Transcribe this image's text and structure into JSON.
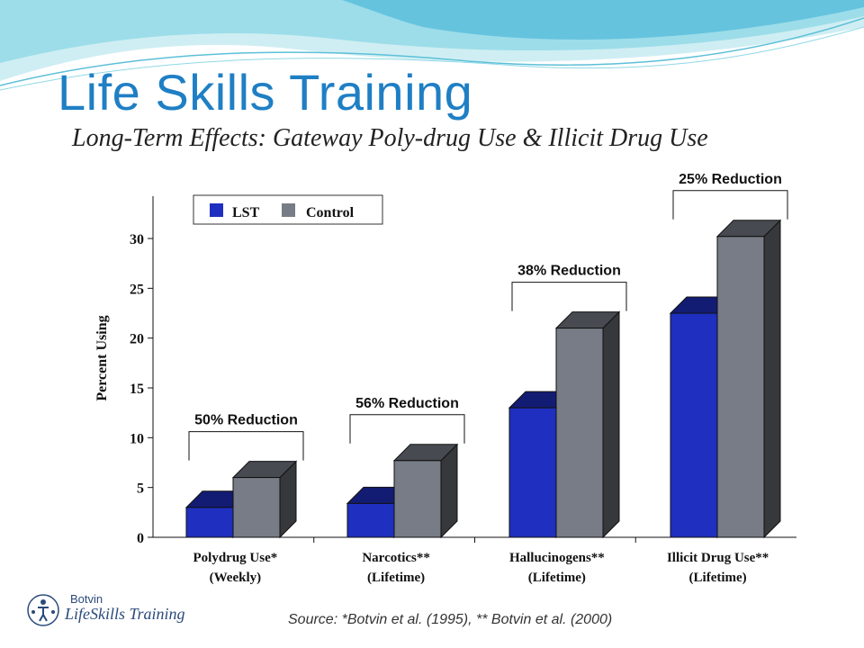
{
  "slide": {
    "title": "Life Skills Training",
    "subtitle": "Long-Term Effects: Gateway Poly-drug Use & Illicit Drug Use",
    "source": "Source:  *Botvin et al. (1995), ** Botvin et al. (2000)",
    "logo_top": "Botvin",
    "logo_main": "LifeSkills Training"
  },
  "chart_data": {
    "type": "bar",
    "categories": [
      [
        "Polydrug Use*",
        "(Weekly)"
      ],
      [
        "Narcotics**",
        "(Lifetime)"
      ],
      [
        "Hallucinogens**",
        "(Lifetime)"
      ],
      [
        "Illicit Drug Use**",
        "(Lifetime)"
      ]
    ],
    "series": [
      {
        "name": "LST",
        "values": [
          3,
          3.4,
          13,
          22.5
        ],
        "color": "#1f2fbf"
      },
      {
        "name": "Control",
        "values": [
          6,
          7.7,
          21,
          30.2
        ],
        "color": "#777c86"
      }
    ],
    "annotations": [
      "50% Reduction",
      "56% Reduction",
      "38% Reduction",
      "25% Reduction"
    ],
    "ylabel": "Percent Using",
    "yticks": [
      0,
      5,
      10,
      15,
      20,
      25,
      30
    ],
    "ylim": [
      0,
      33
    ],
    "legend_position": "top-left",
    "grid": false
  }
}
